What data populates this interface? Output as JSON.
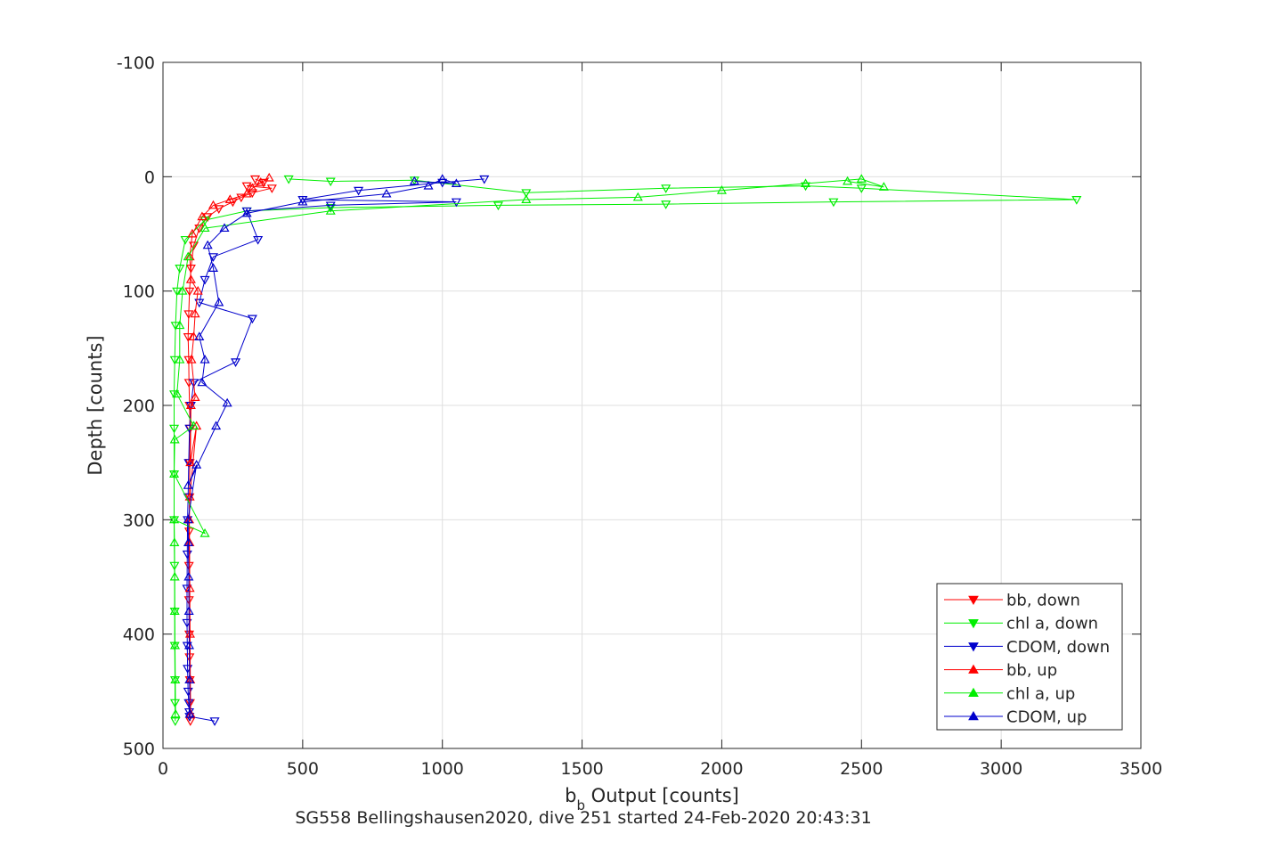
{
  "chart_data": {
    "type": "line",
    "xlabel_main": "b",
    "xlabel_sub": "b",
    "xlabel_rest": " Output [counts]",
    "ylabel": "Depth [counts]",
    "caption": "SG558 Bellingshausen2020, dive 251 started 24-Feb-2020 20:43:31",
    "xlim": [
      0,
      3500
    ],
    "ylim": [
      -100,
      500
    ],
    "y_reversed": true,
    "grid": true,
    "legend_position": "bottom-right",
    "x_ticks": [
      0,
      500,
      1000,
      1500,
      2000,
      2500,
      3000,
      3500
    ],
    "x_tick_labels": [
      "0",
      "500",
      "1000",
      "1500",
      "2000",
      "2500",
      "3000",
      "3500"
    ],
    "y_ticks": [
      -100,
      0,
      100,
      200,
      300,
      400,
      500
    ],
    "y_tick_labels": [
      "-100",
      "0",
      "100",
      "200",
      "300",
      "400",
      "500"
    ],
    "series": [
      {
        "name": "bb, down",
        "color": "#ff0000",
        "marker": "triangle-down",
        "x": [
          330,
          360,
          300,
          390,
          320,
          280,
          250,
          200,
          160,
          130,
          110,
          100,
          95,
          92,
          90,
          92,
          93,
          95,
          97,
          96,
          95,
          94,
          93,
          93,
          94,
          95,
          96,
          97,
          98
        ],
        "y": [
          2,
          5,
          8,
          10,
          14,
          18,
          22,
          28,
          35,
          45,
          60,
          80,
          100,
          120,
          140,
          160,
          180,
          200,
          220,
          250,
          280,
          310,
          340,
          370,
          400,
          420,
          440,
          460,
          476
        ]
      },
      {
        "name": "chl a, down",
        "color": "#00ee00",
        "marker": "triangle-down",
        "x": [
          450,
          600,
          900,
          1300,
          1800,
          2300,
          2500,
          3270,
          2400,
          1800,
          1200,
          600,
          300,
          150,
          80,
          60,
          50,
          45,
          42,
          40,
          40,
          40,
          40,
          41,
          42,
          42,
          43,
          43,
          44
        ],
        "y": [
          2,
          4,
          3,
          14,
          10,
          8,
          10,
          20,
          22,
          24,
          25,
          27,
          30,
          38,
          55,
          80,
          100,
          130,
          160,
          190,
          220,
          260,
          300,
          340,
          380,
          410,
          440,
          460,
          476
        ]
      },
      {
        "name": "CDOM, down",
        "color": "#0000cc",
        "marker": "triangle-down",
        "x": [
          1150,
          1000,
          700,
          500,
          1050,
          600,
          300,
          340,
          180,
          150,
          130,
          320,
          260,
          110,
          100,
          95,
          92,
          90,
          88,
          87,
          86,
          86,
          87,
          88,
          90,
          92,
          94,
          95,
          185
        ],
        "y": [
          2,
          5,
          12,
          20,
          22,
          25,
          30,
          55,
          70,
          90,
          110,
          124,
          162,
          180,
          200,
          220,
          250,
          280,
          300,
          330,
          360,
          390,
          410,
          430,
          450,
          460,
          468,
          472,
          476
        ]
      },
      {
        "name": "bb, up",
        "color": "#ff0000",
        "marker": "triangle-up",
        "x": [
          99,
          98,
          97,
          96,
          95,
          94,
          96,
          120,
          98,
          100,
          115,
          102,
          110,
          115,
          125,
          100,
          96,
          105,
          140,
          180,
          240,
          300,
          320,
          350,
          380
        ],
        "y": [
          470,
          440,
          400,
          360,
          320,
          300,
          280,
          218,
          250,
          200,
          193,
          160,
          140,
          120,
          100,
          90,
          70,
          50,
          35,
          25,
          20,
          15,
          10,
          5,
          1
        ]
      },
      {
        "name": "chl a, up",
        "color": "#00ee00",
        "marker": "triangle-up",
        "x": [
          45,
          44,
          43,
          42,
          42,
          41,
          40,
          150,
          40,
          42,
          110,
          50,
          60,
          60,
          70,
          90,
          150,
          600,
          1300,
          1700,
          2000,
          2300,
          2500,
          2580,
          2450
        ],
        "y": [
          470,
          440,
          410,
          380,
          350,
          320,
          300,
          312,
          260,
          230,
          218,
          190,
          160,
          130,
          100,
          70,
          45,
          30,
          20,
          18,
          12,
          6,
          2,
          9,
          4
        ]
      },
      {
        "name": "CDOM, up",
        "color": "#0000cc",
        "marker": "triangle-up",
        "x": [
          96,
          95,
          94,
          93,
          92,
          91,
          90,
          120,
          90,
          190,
          230,
          140,
          150,
          130,
          200,
          180,
          160,
          220,
          300,
          500,
          800,
          950,
          1000,
          1050,
          900
        ],
        "y": [
          470,
          440,
          410,
          380,
          350,
          320,
          300,
          252,
          270,
          218,
          198,
          180,
          160,
          140,
          110,
          80,
          60,
          45,
          32,
          22,
          15,
          8,
          2,
          6,
          4
        ]
      }
    ]
  }
}
